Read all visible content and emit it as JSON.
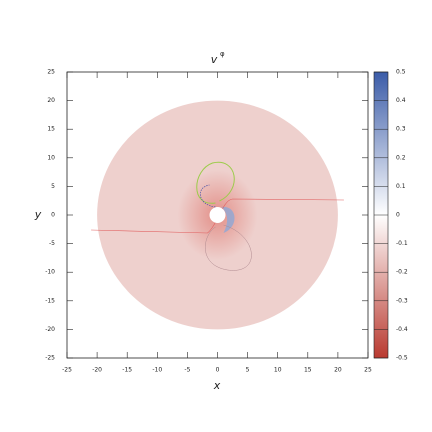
{
  "chart_data": {
    "type": "polar-field",
    "title": "v",
    "title_superscript": "φ",
    "x_label": "x",
    "y_label": "y",
    "xlim": [
      -25,
      25
    ],
    "ylim": [
      -25,
      25
    ],
    "xticks": [
      -25,
      -20,
      -15,
      -10,
      -5,
      0,
      5,
      10,
      15,
      20,
      25
    ],
    "yticks": [
      -25,
      -20,
      -15,
      -10,
      -5,
      0,
      5,
      10,
      15,
      20,
      25
    ],
    "disk": {
      "outer_radius": 20,
      "inner_radius": 1,
      "value": -0.12
    },
    "clim": [
      -0.5,
      0.5
    ],
    "cticks": [
      -0.5,
      -0.4,
      -0.3,
      -0.2,
      -0.1,
      0,
      0.1,
      0.2,
      0.3,
      0.4,
      0.5
    ],
    "colormap": [
      "#b93a30",
      "#ffffff",
      "#3b5ca8"
    ]
  }
}
